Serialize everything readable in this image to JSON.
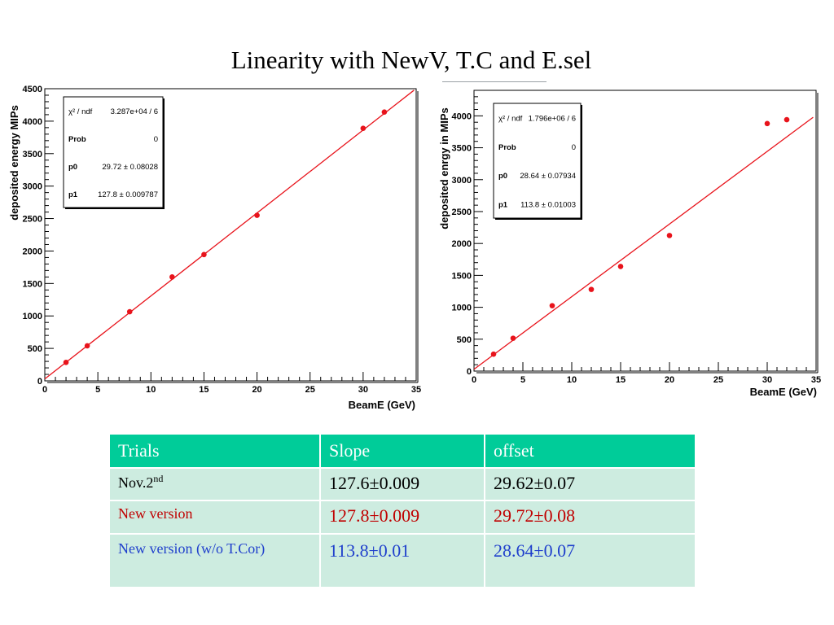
{
  "title": "Linearity with NewV, T.C and E.sel",
  "chart_data": [
    {
      "type": "scatter",
      "title": "",
      "xlabel": "BeamE (GeV)",
      "ylabel": "deposited energy MIPs",
      "xlim": [
        0,
        35
      ],
      "ylim": [
        0,
        4500
      ],
      "xticks": [
        0,
        5,
        10,
        15,
        20,
        25,
        30,
        35
      ],
      "yticks": [
        0,
        500,
        1000,
        1500,
        2000,
        2500,
        3000,
        3500,
        4000,
        4500
      ],
      "series": [
        {
          "x": [
            2,
            4,
            8,
            12,
            15,
            20,
            30,
            32
          ],
          "y": [
            285,
            540,
            1065,
            1600,
            1945,
            2550,
            3890,
            4140
          ],
          "color": "#e8131b"
        }
      ],
      "fit": {
        "p0": 29.72,
        "p1": 127.8,
        "x_range": [
          0,
          34.8
        ],
        "color": "#e8131b"
      },
      "stats": [
        {
          "label": "χ² / ndf",
          "value": "3.287e+04 / 6"
        },
        {
          "label": "Prob",
          "value": "0"
        },
        {
          "label": "p0",
          "value": "29.72 ± 0.08028"
        },
        {
          "label": "p1",
          "value": "127.8 ± 0.009787"
        }
      ]
    },
    {
      "type": "scatter",
      "title": "",
      "xlabel": "BeamE (GeV)",
      "ylabel": "deposited enrgy in MIPs",
      "xlim": [
        0,
        35
      ],
      "ylim": [
        0,
        4400
      ],
      "xticks": [
        0,
        5,
        10,
        15,
        20,
        25,
        30,
        35
      ],
      "yticks": [
        0,
        500,
        1000,
        1500,
        2000,
        2500,
        3000,
        3500,
        4000
      ],
      "series": [
        {
          "x": [
            2,
            4,
            8,
            12,
            15,
            20,
            30,
            32
          ],
          "y": [
            265,
            515,
            1025,
            1280,
            1640,
            2125,
            3880,
            3940
          ],
          "color": "#e8131b"
        }
      ],
      "fit": {
        "p0": 28.64,
        "p1": 113.8,
        "x_range": [
          0,
          34.7
        ],
        "color": "#e8131b"
      },
      "stats": [
        {
          "label": "χ² / ndf",
          "value": "1.796e+06 / 6"
        },
        {
          "label": "Prob",
          "value": "0"
        },
        {
          "label": "p0",
          "value": "28.64 ± 0.07934"
        },
        {
          "label": "p1",
          "value": "113.8 ± 0.01003"
        }
      ]
    }
  ],
  "table": {
    "headers": [
      "Trials",
      "Slope",
      "offset"
    ],
    "rows": [
      {
        "trial": "Nov.2",
        "trial_sup": "nd",
        "slope": "127.6±0.009",
        "offset": "29.62±0.07",
        "color": "#000000"
      },
      {
        "trial": "New version",
        "trial_sup": "",
        "slope": "127.8±0.009",
        "offset": "29.72±0.08",
        "color": "#c00000"
      },
      {
        "trial": "New version (w/o T.Cor)",
        "trial_sup": "",
        "slope": "113.8±0.01",
        "offset": "28.64±0.07",
        "color": "#1f3fcc"
      }
    ]
  }
}
